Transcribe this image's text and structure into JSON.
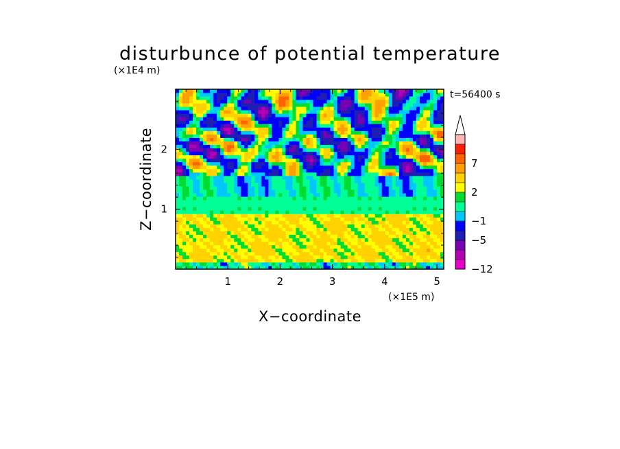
{
  "chart_data": {
    "type": "heatmap",
    "title": "disturbunce of potential temperature",
    "time_label": "t=56400 s",
    "xlabel": "X−coordinate",
    "ylabel": "Z−coordinate",
    "x_unit": "(×1E5 m)",
    "y_unit": "(×1E4 m)",
    "x_ticks": [
      "1",
      "2",
      "3",
      "4",
      "5"
    ],
    "x_tick_values": [
      1,
      2,
      3,
      4,
      5
    ],
    "y_ticks": [
      "1",
      "2"
    ],
    "y_tick_values": [
      1,
      2
    ],
    "xlim": [
      0,
      5.13
    ],
    "ylim": [
      0,
      3.0
    ],
    "colorbar": {
      "levels": [
        -12,
        -9,
        -7,
        -5,
        -3,
        -1,
        0,
        1,
        2,
        3,
        5,
        7,
        9,
        12
      ],
      "labels": [
        "−12",
        "−5",
        "−1",
        "2",
        "7"
      ],
      "label_levels": [
        -12,
        -5,
        -1,
        2,
        7
      ],
      "colors": [
        "#e600c8",
        "#b400b4",
        "#7800b4",
        "#1e1eb4",
        "#0000ff",
        "#00c8ff",
        "#00ff96",
        "#00dc32",
        "#ffff00",
        "#ffd200",
        "#ffa000",
        "#ff6400",
        "#ff1e00",
        "#ffb4b4"
      ],
      "extend": "max"
    },
    "grid": false
  }
}
